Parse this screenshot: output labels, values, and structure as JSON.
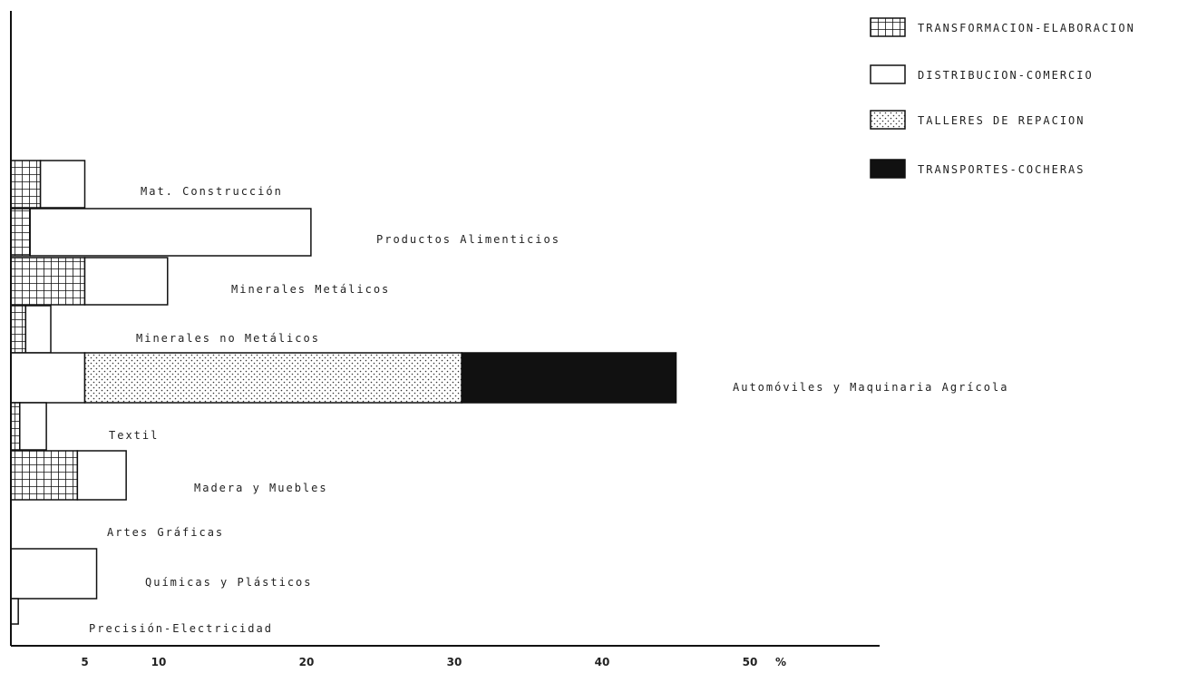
{
  "chart_data": {
    "type": "bar",
    "orientation": "horizontal",
    "stacked": true,
    "xlim": [
      0,
      60
    ],
    "x_unit": "%",
    "grid": false,
    "legend_position": "top-right",
    "ticks": [
      {
        "v": 5,
        "label": "5"
      },
      {
        "v": 10,
        "label": "10"
      },
      {
        "v": 20,
        "label": "20"
      },
      {
        "v": 30,
        "label": "30"
      },
      {
        "v": 40,
        "label": "40"
      },
      {
        "v": 50,
        "label": "50"
      }
    ],
    "unit_label": "%",
    "series": [
      {
        "name": "TRANSFORMACION-ELABORACION",
        "pattern": "grid",
        "color": "#1a1a1a"
      },
      {
        "name": "DISTRIBUCION-COMERCIO",
        "pattern": "empty",
        "color": "#ffffff"
      },
      {
        "name": "TALLERES DE REPACION",
        "pattern": "dots",
        "color": "#ffffff"
      },
      {
        "name": "TRANSPORTES-COCHERAS",
        "pattern": "solid",
        "color": "#111111"
      }
    ],
    "categories": [
      {
        "name": "Mat. Construcción",
        "values": [
          2.0,
          3.0,
          0,
          0
        ]
      },
      {
        "name": "Productos Alimenticios",
        "values": [
          1.3,
          19.0,
          0,
          0
        ]
      },
      {
        "name": "Minerales Metálicos",
        "values": [
          5.0,
          5.6,
          0,
          0
        ]
      },
      {
        "name": "Minerales no Metálicos",
        "values": [
          1.0,
          1.7,
          0,
          0
        ]
      },
      {
        "name": "Automóviles y Maquinaria Agrícola",
        "values": [
          0,
          5.0,
          25.5,
          14.5
        ]
      },
      {
        "name": "Textil",
        "values": [
          0.6,
          1.8,
          0,
          0
        ]
      },
      {
        "name": "Madera y Muebles",
        "values": [
          4.5,
          3.3,
          0,
          0
        ]
      },
      {
        "name": "Artes Gráficas",
        "values": [
          0,
          0,
          0,
          0
        ]
      },
      {
        "name": "Químicas y Plásticos",
        "values": [
          0,
          5.8,
          0,
          0
        ]
      },
      {
        "name": "Precisión-Electricidad",
        "values": [
          0,
          0.5,
          0,
          0
        ]
      }
    ]
  }
}
